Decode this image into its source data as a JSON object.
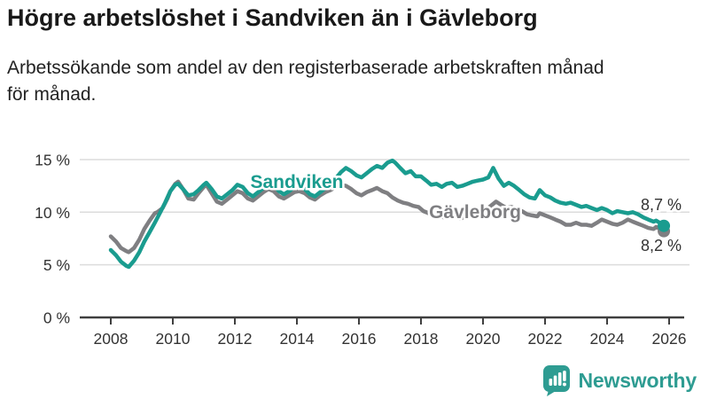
{
  "header": {
    "title": "Högre arbetslöshet i Sandviken än i Gävleborg",
    "subtitle": "Arbetssökande som andel av den registerbaserade arbetskraften månad\nför månad."
  },
  "footer": {
    "brand": "Newsworthy",
    "brand_color": "#2e9c92"
  },
  "colors": {
    "sandviken": "#1a9c8f",
    "gavleborg": "#7f7f82",
    "grid": "#dcdcdc",
    "axis": "#3f3f3f",
    "label_text": "#333333"
  },
  "chart_data": {
    "type": "line",
    "title": "Högre arbetslöshet i Sandviken än i Gävleborg",
    "subtitle": "Arbetssökande som andel av den registerbaserade arbetskraften månad för månad.",
    "unit": "%",
    "grid": true,
    "legend_position": "inline-series-labels",
    "x_axis": {
      "ticks": [
        2008,
        2010,
        2012,
        2014,
        2016,
        2018,
        2020,
        2022,
        2024,
        2026
      ],
      "range": [
        2007.0,
        2026.4
      ]
    },
    "y_axis": {
      "ticks": [
        0,
        5,
        10,
        15
      ],
      "tick_labels": [
        "0 %",
        "5 %",
        "10 %",
        "15 %"
      ],
      "range": [
        0,
        17.5
      ]
    },
    "series": [
      {
        "name": "Gävleborg",
        "color": "#7f7f82",
        "end_label": "8,2 %",
        "end_value": 8.2,
        "points": [
          [
            2008.0,
            7.7
          ],
          [
            2008.17,
            7.2
          ],
          [
            2008.33,
            6.6
          ],
          [
            2008.5,
            6.3
          ],
          [
            2008.58,
            6.2
          ],
          [
            2008.75,
            6.6
          ],
          [
            2008.92,
            7.4
          ],
          [
            2009.08,
            8.4
          ],
          [
            2009.25,
            9.2
          ],
          [
            2009.42,
            9.9
          ],
          [
            2009.5,
            10.0
          ],
          [
            2009.67,
            10.4
          ],
          [
            2009.83,
            11.3
          ],
          [
            2009.92,
            12.0
          ],
          [
            2010.08,
            12.7
          ],
          [
            2010.17,
            12.9
          ],
          [
            2010.33,
            12.2
          ],
          [
            2010.5,
            11.3
          ],
          [
            2010.67,
            11.2
          ],
          [
            2010.83,
            11.8
          ],
          [
            2011.0,
            12.4
          ],
          [
            2011.08,
            12.6
          ],
          [
            2011.25,
            11.8
          ],
          [
            2011.42,
            11.0
          ],
          [
            2011.58,
            10.8
          ],
          [
            2011.75,
            11.2
          ],
          [
            2011.92,
            11.6
          ],
          [
            2012.08,
            12.0
          ],
          [
            2012.25,
            11.8
          ],
          [
            2012.42,
            11.3
          ],
          [
            2012.58,
            11.1
          ],
          [
            2012.75,
            11.5
          ],
          [
            2012.92,
            11.9
          ],
          [
            2013.08,
            12.2
          ],
          [
            2013.25,
            12.0
          ],
          [
            2013.42,
            11.5
          ],
          [
            2013.58,
            11.3
          ],
          [
            2013.75,
            11.6
          ],
          [
            2013.92,
            11.9
          ],
          [
            2014.08,
            12.0
          ],
          [
            2014.25,
            11.8
          ],
          [
            2014.42,
            11.4
          ],
          [
            2014.58,
            11.2
          ],
          [
            2014.75,
            11.6
          ],
          [
            2014.92,
            11.9
          ],
          [
            2015.08,
            12.1
          ],
          [
            2015.25,
            12.4
          ],
          [
            2015.42,
            12.6
          ],
          [
            2015.58,
            12.5
          ],
          [
            2015.75,
            12.2
          ],
          [
            2015.92,
            11.8
          ],
          [
            2016.08,
            11.6
          ],
          [
            2016.25,
            11.9
          ],
          [
            2016.42,
            12.1
          ],
          [
            2016.58,
            12.3
          ],
          [
            2016.75,
            12.0
          ],
          [
            2016.92,
            11.8
          ],
          [
            2017.08,
            11.4
          ],
          [
            2017.25,
            11.1
          ],
          [
            2017.42,
            10.9
          ],
          [
            2017.58,
            10.8
          ],
          [
            2017.75,
            10.6
          ],
          [
            2017.92,
            10.5
          ],
          [
            2018.08,
            10.1
          ],
          [
            2018.25,
            9.9
          ],
          [
            2018.42,
            9.7
          ],
          [
            2018.58,
            9.6
          ],
          [
            2018.75,
            9.5
          ],
          [
            2018.92,
            9.7
          ],
          [
            2019.08,
            9.6
          ],
          [
            2019.25,
            9.4
          ],
          [
            2019.42,
            9.5
          ],
          [
            2019.58,
            9.6
          ],
          [
            2019.75,
            9.8
          ],
          [
            2019.92,
            10.0
          ],
          [
            2020.08,
            10.2
          ],
          [
            2020.25,
            10.6
          ],
          [
            2020.42,
            11.0
          ],
          [
            2020.58,
            10.7
          ],
          [
            2020.75,
            10.4
          ],
          [
            2020.92,
            10.5
          ],
          [
            2021.08,
            10.3
          ],
          [
            2021.25,
            10.1
          ],
          [
            2021.42,
            9.8
          ],
          [
            2021.58,
            9.7
          ],
          [
            2021.75,
            9.6
          ],
          [
            2021.83,
            9.9
          ],
          [
            2022.0,
            9.7
          ],
          [
            2022.17,
            9.5
          ],
          [
            2022.33,
            9.3
          ],
          [
            2022.5,
            9.1
          ],
          [
            2022.67,
            8.8
          ],
          [
            2022.83,
            8.8
          ],
          [
            2023.0,
            9.0
          ],
          [
            2023.17,
            8.8
          ],
          [
            2023.33,
            8.8
          ],
          [
            2023.5,
            8.7
          ],
          [
            2023.67,
            9.0
          ],
          [
            2023.83,
            9.3
          ],
          [
            2024.0,
            9.1
          ],
          [
            2024.17,
            8.9
          ],
          [
            2024.33,
            8.8
          ],
          [
            2024.5,
            9.0
          ],
          [
            2024.67,
            9.3
          ],
          [
            2024.83,
            9.1
          ],
          [
            2025.0,
            8.9
          ],
          [
            2025.17,
            8.7
          ],
          [
            2025.33,
            8.5
          ],
          [
            2025.5,
            8.4
          ],
          [
            2025.58,
            8.6
          ],
          [
            2025.75,
            8.4
          ],
          [
            2025.83,
            8.2
          ]
        ]
      },
      {
        "name": "Sandviken",
        "color": "#1a9c8f",
        "end_label": "8,7 %",
        "end_value": 8.7,
        "points": [
          [
            2008.0,
            6.4
          ],
          [
            2008.17,
            5.9
          ],
          [
            2008.33,
            5.3
          ],
          [
            2008.5,
            4.9
          ],
          [
            2008.58,
            4.8
          ],
          [
            2008.75,
            5.4
          ],
          [
            2008.92,
            6.2
          ],
          [
            2009.08,
            7.2
          ],
          [
            2009.25,
            8.1
          ],
          [
            2009.42,
            9.0
          ],
          [
            2009.58,
            9.9
          ],
          [
            2009.75,
            10.9
          ],
          [
            2009.92,
            12.0
          ],
          [
            2010.08,
            12.6
          ],
          [
            2010.17,
            12.7
          ],
          [
            2010.33,
            12.2
          ],
          [
            2010.5,
            11.6
          ],
          [
            2010.67,
            11.7
          ],
          [
            2010.83,
            12.1
          ],
          [
            2011.0,
            12.6
          ],
          [
            2011.08,
            12.8
          ],
          [
            2011.25,
            12.2
          ],
          [
            2011.42,
            11.5
          ],
          [
            2011.58,
            11.3
          ],
          [
            2011.75,
            11.7
          ],
          [
            2011.92,
            12.1
          ],
          [
            2012.08,
            12.6
          ],
          [
            2012.25,
            12.4
          ],
          [
            2012.42,
            11.8
          ],
          [
            2012.58,
            11.5
          ],
          [
            2012.75,
            11.9
          ],
          [
            2012.92,
            12.3
          ],
          [
            2013.08,
            12.8
          ],
          [
            2013.25,
            12.6
          ],
          [
            2013.42,
            12.0
          ],
          [
            2013.58,
            11.7
          ],
          [
            2013.75,
            12.0
          ],
          [
            2013.92,
            12.4
          ],
          [
            2014.08,
            12.5
          ],
          [
            2014.25,
            12.2
          ],
          [
            2014.42,
            11.7
          ],
          [
            2014.58,
            11.5
          ],
          [
            2014.75,
            11.9
          ],
          [
            2014.92,
            12.3
          ],
          [
            2015.08,
            12.7
          ],
          [
            2015.25,
            13.2
          ],
          [
            2015.42,
            13.8
          ],
          [
            2015.58,
            14.2
          ],
          [
            2015.75,
            13.9
          ],
          [
            2015.92,
            13.5
          ],
          [
            2016.08,
            13.3
          ],
          [
            2016.25,
            13.7
          ],
          [
            2016.42,
            14.1
          ],
          [
            2016.58,
            14.4
          ],
          [
            2016.75,
            14.2
          ],
          [
            2016.92,
            14.7
          ],
          [
            2017.08,
            14.9
          ],
          [
            2017.17,
            14.7
          ],
          [
            2017.33,
            14.2
          ],
          [
            2017.5,
            13.7
          ],
          [
            2017.67,
            13.9
          ],
          [
            2017.83,
            13.4
          ],
          [
            2018.0,
            13.4
          ],
          [
            2018.17,
            13.0
          ],
          [
            2018.33,
            12.6
          ],
          [
            2018.5,
            12.7
          ],
          [
            2018.67,
            12.4
          ],
          [
            2018.83,
            12.7
          ],
          [
            2019.0,
            12.8
          ],
          [
            2019.17,
            12.4
          ],
          [
            2019.33,
            12.5
          ],
          [
            2019.5,
            12.7
          ],
          [
            2019.67,
            12.9
          ],
          [
            2019.83,
            13.0
          ],
          [
            2020.0,
            13.1
          ],
          [
            2020.17,
            13.3
          ],
          [
            2020.33,
            14.2
          ],
          [
            2020.5,
            13.2
          ],
          [
            2020.67,
            12.5
          ],
          [
            2020.83,
            12.8
          ],
          [
            2021.0,
            12.5
          ],
          [
            2021.17,
            12.1
          ],
          [
            2021.33,
            11.7
          ],
          [
            2021.5,
            11.4
          ],
          [
            2021.67,
            11.3
          ],
          [
            2021.83,
            12.1
          ],
          [
            2022.0,
            11.6
          ],
          [
            2022.17,
            11.4
          ],
          [
            2022.33,
            11.1
          ],
          [
            2022.5,
            10.9
          ],
          [
            2022.67,
            10.8
          ],
          [
            2022.83,
            10.9
          ],
          [
            2023.0,
            10.7
          ],
          [
            2023.17,
            10.5
          ],
          [
            2023.33,
            10.6
          ],
          [
            2023.5,
            10.4
          ],
          [
            2023.67,
            10.2
          ],
          [
            2023.83,
            10.4
          ],
          [
            2024.0,
            10.2
          ],
          [
            2024.17,
            9.9
          ],
          [
            2024.33,
            10.1
          ],
          [
            2024.5,
            10.0
          ],
          [
            2024.67,
            9.9
          ],
          [
            2024.83,
            10.0
          ],
          [
            2025.0,
            9.8
          ],
          [
            2025.17,
            9.5
          ],
          [
            2025.33,
            9.3
          ],
          [
            2025.5,
            9.1
          ],
          [
            2025.58,
            9.2
          ],
          [
            2025.75,
            8.9
          ],
          [
            2025.83,
            8.7
          ]
        ]
      }
    ]
  }
}
